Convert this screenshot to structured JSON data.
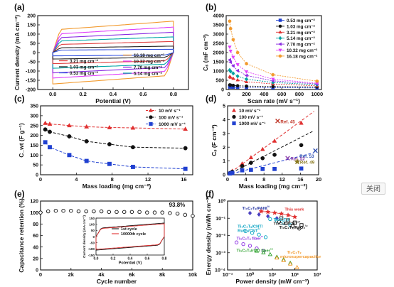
{
  "close_label": "关闭",
  "chart_data": [
    {
      "panel": "(a)",
      "type": "line",
      "xlabel": "Potential (V)",
      "ylabel": "Current density (mA cm⁻²)",
      "xlim": [
        -0.1,
        0.9
      ],
      "ylim": [
        -200,
        200
      ],
      "xticks": [
        0.0,
        0.2,
        0.4,
        0.6,
        0.8
      ],
      "yticks": [
        -200,
        -150,
        -100,
        -50,
        0,
        50,
        100,
        150,
        200
      ],
      "xtick_labels": [
        "0.0",
        "0.2",
        "0.4",
        "0.6",
        "0.8"
      ],
      "ytick_labels": [
        "-200",
        "-150",
        "-100",
        "-50",
        "0",
        "50",
        "100",
        "150",
        "200"
      ],
      "legend_columns": [
        [
          "3.21 mg cm⁻²",
          "1.03 mg cm⁻²",
          "0.53 mg cm⁻²"
        ],
        [
          "16.18 mg cm⁻²",
          "10.32 mg cm⁻²",
          "7.70 mg cm⁻²",
          "5.14 mg cm⁻²"
        ]
      ],
      "loops": [
        {
          "name": "16.18 mg cm⁻²",
          "color": "#f29a2e",
          "amp": 170
        },
        {
          "name": "10.32 mg cm⁻²",
          "color": "#e040fb",
          "amp": 138
        },
        {
          "name": "7.70 mg cm⁻²",
          "color": "#8a2be2",
          "amp": 110
        },
        {
          "name": "5.14 mg cm⁻²",
          "color": "#00a6a6",
          "amp": 85
        },
        {
          "name": "3.21 mg cm⁻²",
          "color": "#e04040",
          "amp": 60
        },
        {
          "name": "1.03 mg cm⁻²",
          "color": "#222222",
          "amp": 35
        },
        {
          "name": "0.53 mg cm⁻²",
          "color": "#3050e0",
          "amp": 18
        }
      ]
    },
    {
      "panel": "(b)",
      "type": "line",
      "xlabel": "Scan rate (mV s⁻¹)",
      "ylabel": "Cₛ (mF cm⁻²)",
      "xlim": [
        -30,
        1050
      ],
      "ylim": [
        0,
        4000
      ],
      "xticks": [
        0,
        200,
        400,
        600,
        800,
        1000
      ],
      "yticks": [
        0,
        500,
        1000,
        1500,
        2000,
        2500,
        3000,
        3500,
        4000
      ],
      "xtick_labels": [
        "0",
        "200",
        "400",
        "600",
        "800",
        "1000"
      ],
      "ytick_labels": [
        "0",
        "500",
        "1000",
        "1500",
        "2000",
        "2500",
        "3000",
        "3500",
        "4000"
      ],
      "x": [
        10,
        20,
        50,
        100,
        200,
        500,
        1000
      ],
      "series": [
        {
          "name": "0.53 mg cm⁻²",
          "color": "#2040d0",
          "marker": "square",
          "values": [
            140,
            135,
            128,
            120,
            112,
            100,
            90
          ]
        },
        {
          "name": "1.03 mg cm⁻²",
          "color": "#111111",
          "marker": "circle",
          "values": [
            250,
            240,
            225,
            205,
            185,
            160,
            140
          ]
        },
        {
          "name": "3.21 mg cm⁻²",
          "color": "#e03030",
          "marker": "triangle",
          "values": [
            700,
            660,
            600,
            520,
            420,
            300,
            200
          ]
        },
        {
          "name": "5.14 mg cm⁻²",
          "color": "#00a0a0",
          "marker": "diamond",
          "values": [
            1050,
            980,
            870,
            720,
            560,
            380,
            260
          ]
        },
        {
          "name": "7.70 mg cm⁻²",
          "color": "#8a2be2",
          "marker": "triangle-left",
          "values": [
            1600,
            1480,
            1280,
            1020,
            760,
            470,
            300
          ]
        },
        {
          "name": "10.32 mg cm⁻²",
          "color": "#e040fb",
          "marker": "triangle-down",
          "values": [
            2300,
            2080,
            1750,
            1350,
            960,
            560,
            340
          ]
        },
        {
          "name": "16.18 mg cm⁻²",
          "color": "#f29a2e",
          "marker": "hexagon",
          "values": [
            3700,
            3300,
            2700,
            2000,
            1400,
            800,
            450
          ]
        }
      ]
    },
    {
      "panel": "(c)",
      "type": "scatter",
      "xlabel": "Mass loading (mg cm⁻²)",
      "ylabel": "C_wt (F g⁻¹)",
      "xlim": [
        0,
        17
      ],
      "ylim": [
        0,
        350
      ],
      "xticks": [
        0,
        4,
        8,
        12,
        16
      ],
      "yticks": [
        0,
        50,
        100,
        150,
        200,
        250,
        300,
        350
      ],
      "xtick_labels": [
        "0",
        "4",
        "8",
        "12",
        "16"
      ],
      "ytick_labels": [
        "0",
        "50",
        "100",
        "150",
        "200",
        "250",
        "300",
        "350"
      ],
      "series": [
        {
          "name": "10 mV s⁻¹",
          "color": "#e03030",
          "marker": "triangle",
          "x": [
            0.53,
            1.03,
            3.21,
            5.14,
            7.7,
            10.32,
            16.18
          ],
          "values": [
            262,
            258,
            250,
            244,
            240,
            238,
            232
          ]
        },
        {
          "name": "100 mV s⁻¹",
          "color": "#111111",
          "marker": "circle",
          "x": [
            0.53,
            1.03,
            3.21,
            5.14,
            7.7,
            10.32,
            16.18
          ],
          "values": [
            230,
            218,
            195,
            170,
            155,
            140,
            135
          ]
        },
        {
          "name": "1000 mV s⁻¹",
          "color": "#2040d0",
          "marker": "square",
          "x": [
            0.53,
            1.03,
            3.21,
            5.14,
            7.7,
            10.32,
            16.18
          ],
          "values": [
            165,
            140,
            100,
            70,
            55,
            40,
            30
          ]
        }
      ]
    },
    {
      "panel": "(d)",
      "type": "scatter",
      "xlabel": "Mass loading (mg cm⁻²)",
      "ylabel": "Cₛ (F cm⁻²)",
      "xlim": [
        0,
        20
      ],
      "ylim": [
        0,
        5
      ],
      "xticks": [
        0,
        4,
        8,
        12,
        16,
        20
      ],
      "yticks": [
        0,
        1,
        2,
        3,
        4,
        5
      ],
      "xtick_labels": [
        "0",
        "4",
        "8",
        "12",
        "16",
        "20"
      ],
      "ytick_labels": [
        "0",
        "1",
        "2",
        "3",
        "4",
        "5"
      ],
      "series": [
        {
          "name": "10 mV s⁻¹",
          "color": "#e03030",
          "marker": "triangle",
          "x": [
            0.53,
            1.03,
            3.21,
            5.14,
            7.7,
            10.32,
            16.18
          ],
          "values": [
            0.14,
            0.27,
            0.8,
            1.25,
            1.85,
            2.45,
            3.75
          ]
        },
        {
          "name": "100 mV s⁻¹",
          "color": "#111111",
          "marker": "circle",
          "x": [
            0.53,
            1.03,
            3.21,
            5.14,
            7.7,
            10.32,
            16.18
          ],
          "values": [
            0.12,
            0.22,
            0.63,
            0.87,
            1.2,
            1.45,
            2.15
          ]
        },
        {
          "name": "1000 mV s⁻¹",
          "color": "#2040d0",
          "marker": "square",
          "x": [
            0.53,
            1.03,
            3.21,
            5.14,
            7.7,
            10.32,
            16.18
          ],
          "values": [
            0.09,
            0.14,
            0.32,
            0.36,
            0.42,
            0.42,
            0.45
          ]
        }
      ],
      "fit_lines": [
        {
          "color": "#e03030",
          "x": [
            0,
            19
          ],
          "y": [
            0,
            4.6
          ]
        },
        {
          "color": "#111111",
          "x": [
            0,
            19
          ],
          "y": [
            0,
            3.2
          ]
        },
        {
          "color": "#2040d0",
          "x": [
            0,
            19
          ],
          "y": [
            0,
            1.6
          ]
        }
      ],
      "refs": [
        {
          "label": "Ref. 45",
          "x": 11,
          "y": 3.9,
          "marker": "x",
          "color": "#c0392b"
        },
        {
          "label": "Ref. 53",
          "x": 19.3,
          "y": 1.75,
          "marker": "x",
          "color": "#3050b0"
        },
        {
          "label": "Ref. 52",
          "x": 13.2,
          "y": 1.2,
          "marker": "x",
          "color": "#8e44ad"
        },
        {
          "label": "Ref. 49",
          "x": 15.3,
          "y": 0.95,
          "marker": "star",
          "color": "#8a7a20"
        }
      ]
    },
    {
      "panel": "(e)",
      "type": "line",
      "xlabel": "Cycle number",
      "ylabel": "Capacitance retention (%)",
      "xlim": [
        0,
        10000
      ],
      "ylim": [
        0,
        120
      ],
      "xticks": [
        0,
        2000,
        4000,
        6000,
        8000,
        10000
      ],
      "yticks": [
        0,
        20,
        40,
        60,
        80,
        100,
        120
      ],
      "xtick_labels": [
        "0",
        "2k",
        "4k",
        "6k",
        "8k",
        "10k"
      ],
      "ytick_labels": [
        "0",
        "20",
        "40",
        "60",
        "80",
        "100",
        "120"
      ],
      "annotation": "93.8%",
      "x": [
        0,
        500,
        1000,
        1500,
        2000,
        2500,
        3000,
        3500,
        4000,
        4500,
        5000,
        5500,
        6000,
        6500,
        7000,
        7500,
        8000,
        8500,
        9000,
        9500,
        10000
      ],
      "values": [
        100,
        102,
        103,
        103,
        103,
        102,
        102,
        102,
        102,
        101,
        101,
        101,
        101,
        101,
        100,
        100,
        100,
        99,
        98,
        96,
        94
      ],
      "inset": {
        "xlabel": "Potential (V)",
        "ylabel": "Current density (mA cm⁻²)",
        "xlim": [
          0.0,
          0.8
        ],
        "ylim": [
          -150,
          150
        ],
        "xticks": [
          0.0,
          0.2,
          0.4,
          0.6,
          0.8
        ],
        "yticks": [
          -150,
          -100,
          -50,
          0,
          50,
          100,
          150
        ],
        "xtick_labels": [
          "0.0",
          "0.2",
          "0.4",
          "0.6",
          "0.8"
        ],
        "ytick_labels": [
          "-150",
          "-100",
          "-50",
          "0",
          "50",
          "100",
          "150"
        ],
        "legend": [
          {
            "name": "1st cycle",
            "color": "#111111",
            "amp": 110
          },
          {
            "name": "10000th cycle",
            "color": "#e03030",
            "amp": 104
          }
        ]
      }
    },
    {
      "panel": "(f)",
      "type": "scatter",
      "xlabel": "Power density (mW cm⁻²)",
      "ylabel": "Energy density (mWh cm⁻²)",
      "xscale": "log",
      "yscale": "log",
      "xlim": [
        -1,
        3
      ],
      "ylim": [
        -4,
        0
      ],
      "xticks": [
        -1,
        0,
        1,
        2,
        3
      ],
      "yticks": [
        -4,
        -3,
        -2,
        -1,
        0
      ],
      "xtick_labels": [
        "10⁻¹",
        "10⁰",
        "10¹",
        "10²",
        "10³"
      ],
      "ytick_labels": [
        "10⁻⁴",
        "10⁻³",
        "10⁻²",
        "10⁻¹",
        "10⁰"
      ],
      "series": [
        {
          "name": "This work",
          "color": "#e03030",
          "marker": "star",
          "label_color": "#e03030",
          "x": [
            0.5,
            0.8,
            1.1,
            1.4,
            1.7,
            2.0
          ],
          "values": [
            -0.6,
            -0.63,
            -0.68,
            -0.74,
            -0.82,
            -0.92
          ]
        },
        {
          "name": "Ti₃C₂Tₓ/PANI",
          "color": "#4a40c0",
          "marker": "diamond",
          "label_color": "#2030a0",
          "x": [
            0.0,
            0.4,
            0.8,
            1.2
          ],
          "values": [
            -0.7,
            -0.78,
            -0.88,
            -1.0
          ]
        },
        {
          "name": "Ti₃C₂Tₓ/CNT",
          "color": "#00a0c0",
          "marker": "circle-open",
          "label_color": "#00a0c0",
          "x": [
            0.9,
            1.2,
            1.5,
            1.8
          ],
          "values": [
            -1.05,
            -1.15,
            -1.28,
            -1.4
          ]
        },
        {
          "name": "Ti₃C₂Tₓ/CNT",
          "color": "#111111",
          "marker": "circle-open",
          "label_color": "#111111",
          "x": [
            1.3,
            1.6,
            1.9,
            2.2
          ],
          "values": [
            -1.2,
            -1.3,
            -1.45,
            -1.6
          ]
        },
        {
          "name": "Ti₃C₂Tₓ/RuO₂",
          "color": "#111111",
          "marker": "square-open",
          "label_color": "#111111",
          "x": [
            1.4,
            1.7,
            2.0,
            2.3
          ],
          "values": [
            -1.0,
            -1.12,
            -1.25,
            -1.4
          ]
        },
        {
          "name": "Ti₃C₂Tₓ/CNT/RuO₂",
          "color": "#00a0c0",
          "marker": "circle-open",
          "label_color": "#00a0c0",
          "x": [
            -0.2,
            0.1,
            0.4,
            0.7
          ],
          "values": [
            -1.75,
            -1.85,
            -1.95,
            -2.1
          ]
        },
        {
          "name": "Ti₃C₂Tₓ fiber",
          "color": "#8a2be2",
          "marker": "circle-open",
          "label_color": "#8a2be2",
          "x": [
            -0.6,
            -0.3,
            0.0,
            0.3,
            0.6
          ],
          "values": [
            -2.4,
            -2.5,
            -2.6,
            -2.75,
            -2.9
          ]
        },
        {
          "name": "Ti₃C₂Tₓ/rGO fiber",
          "color": "#2aa02a",
          "marker": "triangle-open",
          "label_color": "#2aa02a",
          "x": [
            0.3,
            0.6,
            0.9,
            1.2,
            1.5,
            1.8
          ],
          "values": [
            -2.9,
            -3.0,
            -3.1,
            -3.25,
            -3.4,
            -3.6
          ]
        },
        {
          "name": "Ti₃C₂Tₓ microsupercapacitor",
          "color": "#f29a2e",
          "marker": "triangle-open",
          "label_color": "#f29a2e",
          "x": [
            1.2,
            1.5,
            1.8,
            2.1
          ],
          "values": [
            -3.3,
            -3.45,
            -3.65,
            -3.85
          ]
        }
      ],
      "labels": [
        {
          "text": "Ti₃C₂Tₓ/PANI",
          "ref": "²⁰",
          "x": -0.35,
          "y": -0.5,
          "color": "#2030a0"
        },
        {
          "text": "This work",
          "ref": "",
          "x": 1.55,
          "y": -0.55,
          "color": "#e03030"
        },
        {
          "text": "Ti₃C₂Tₓ/CNT/",
          "ref": "",
          "x": -0.55,
          "y": -1.55,
          "color": "#00a0c0"
        },
        {
          "text": "RuO₂/CNT",
          "ref": "²⁷",
          "x": -0.55,
          "y": -1.8,
          "color": "#00a0c0"
        },
        {
          "text": "Ti₃C₂Tₓ/",
          "ref": "",
          "x": 1.05,
          "y": -1.15,
          "color": "#00a0c0"
        },
        {
          "text": "Ti₃C₂Tₓ/CNT",
          "ref": "⁶⁰",
          "x": 1.05,
          "y": -1.38,
          "color": "#111111"
        },
        {
          "text": "Ti₃C₂Tₓ/RuO₂",
          "ref": "¹⁸",
          "x": 1.3,
          "y": -1.6,
          "color": "#111111"
        },
        {
          "text": "Ti₃C₂Tₓ fiber",
          "ref": "²³",
          "x": -0.6,
          "y": -2.25,
          "color": "#8a2be2"
        },
        {
          "text": "Ti₃C₂Tₓ/rGO fiber",
          "ref": "⁵⁹",
          "x": -0.6,
          "y": -2.95,
          "color": "#2aa02a"
        },
        {
          "text": "Ti₃C₂Tₓ",
          "ref": "",
          "x": 1.65,
          "y": -3.05,
          "color": "#f29a2e"
        },
        {
          "text": "microsupercapacitor",
          "ref": "",
          "x": 1.35,
          "y": -3.3,
          "color": "#f29a2e"
        }
      ]
    }
  ]
}
